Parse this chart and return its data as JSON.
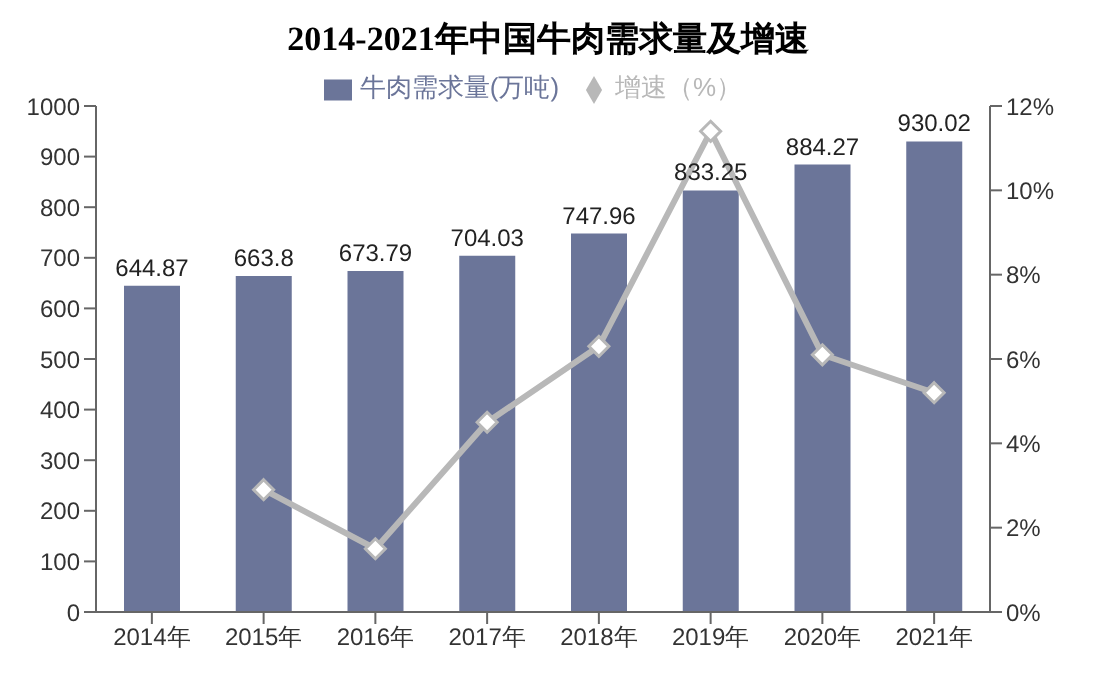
{
  "chart_data": {
    "type": "bar",
    "title": "2014-2021年中国牛肉需求量及增速",
    "categories": [
      "2014年",
      "2015年",
      "2016年",
      "2017年",
      "2018年",
      "2019年",
      "2020年",
      "2021年"
    ],
    "series": [
      {
        "name": "牛肉需求量(万吨)",
        "color": "#6b7599",
        "values": [
          644.87,
          663.8,
          673.79,
          704.03,
          747.96,
          833.25,
          884.27,
          930.02
        ],
        "value_labels": [
          "644.87",
          "663.8",
          "673.79",
          "704.03",
          "747.96",
          "833.25",
          "884.27",
          "930.02"
        ]
      },
      {
        "name": "增速（%）",
        "type": "line",
        "axis": "y2",
        "color": "#b8b8b8",
        "marker": "diamond",
        "values": [
          null,
          2.9,
          1.5,
          4.5,
          6.3,
          11.4,
          6.1,
          5.2
        ]
      }
    ],
    "ylim": [
      0,
      1000
    ],
    "yticks": [
      0,
      100,
      200,
      300,
      400,
      500,
      600,
      700,
      800,
      900,
      1000
    ],
    "y2lim": [
      0,
      12
    ],
    "y2ticks": [
      {
        "value": 0,
        "label": "0%"
      },
      {
        "value": 2,
        "label": "2%"
      },
      {
        "value": 4,
        "label": "4%"
      },
      {
        "value": 6,
        "label": "6%"
      },
      {
        "value": 8,
        "label": "8%"
      },
      {
        "value": 10,
        "label": "10%"
      },
      {
        "value": 12,
        "label": "12%"
      }
    ],
    "legend": "top",
    "grid": false
  }
}
